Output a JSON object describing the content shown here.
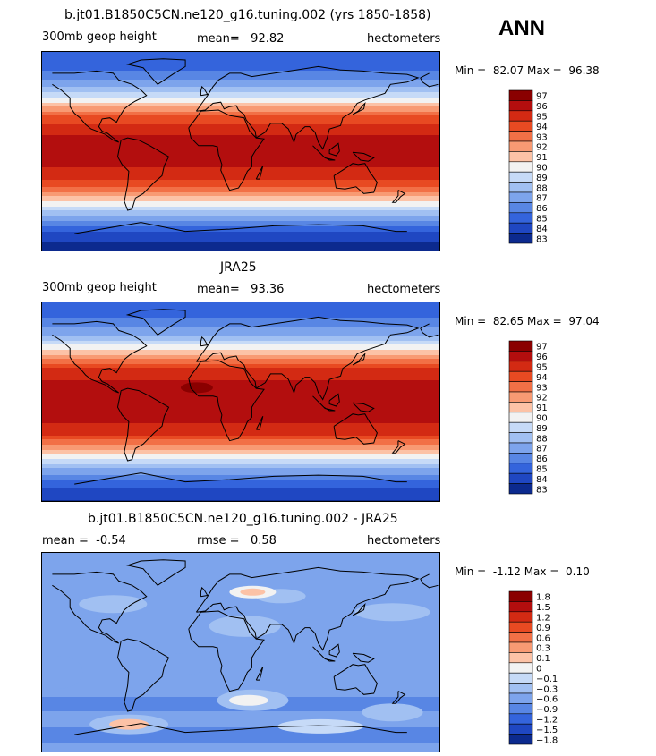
{
  "season": "ANN",
  "units_label": "hectometers",
  "chart_data": [
    {
      "type": "heatmap",
      "title": "b.jt01.B1850C5CN.ne120_g16.tuning.002 (yrs 1850-1858)",
      "field": "300mb geop height",
      "stat_label": "mean=",
      "stat_value": "92.82",
      "units": "hectometers",
      "min_label": "Min =",
      "min_value": "82.07",
      "max_label": "Max =",
      "max_value": "96.38",
      "colorbar_levels": [
        "97",
        "96",
        "95",
        "94",
        "93",
        "92",
        "91",
        "90",
        "89",
        "88",
        "87",
        "86",
        "85",
        "84",
        "83"
      ],
      "colorbar_colors": [
        "#8a0000",
        "#b30e0e",
        "#d32a13",
        "#e84a22",
        "#f27046",
        "#f89a73",
        "#fcc2a6",
        "#f2f2f2",
        "#c6daf7",
        "#a1c0f2",
        "#7da4ec",
        "#5886e4",
        "#3464dc",
        "#1f47c2",
        "#0c2a8e"
      ],
      "lat_profile": [
        [
          -90,
          83.3
        ],
        [
          -75,
          84.6
        ],
        [
          -60,
          87.4
        ],
        [
          -45,
          91.0
        ],
        [
          -30,
          94.6
        ],
        [
          -15,
          96.0
        ],
        [
          0,
          96.2
        ],
        [
          15,
          96.0
        ],
        [
          30,
          94.4
        ],
        [
          45,
          90.8
        ],
        [
          60,
          87.6
        ],
        [
          75,
          85.6
        ],
        [
          90,
          85.0
        ]
      ]
    },
    {
      "type": "heatmap",
      "title": "JRA25",
      "field": "300mb geop height",
      "stat_label": "mean=",
      "stat_value": "93.36",
      "units": "hectometers",
      "min_label": "Min =",
      "min_value": "82.65",
      "max_label": "Max =",
      "max_value": "97.04",
      "colorbar_levels": [
        "97",
        "96",
        "95",
        "94",
        "93",
        "92",
        "91",
        "90",
        "89",
        "88",
        "87",
        "86",
        "85",
        "84",
        "83"
      ],
      "colorbar_colors": [
        "#8a0000",
        "#b30e0e",
        "#d32a13",
        "#e84a22",
        "#f27046",
        "#f89a73",
        "#fcc2a6",
        "#f2f2f2",
        "#c6daf7",
        "#a1c0f2",
        "#7da4ec",
        "#5886e4",
        "#3464dc",
        "#1f47c2",
        "#0c2a8e"
      ],
      "lat_profile": [
        [
          -90,
          83.8
        ],
        [
          -75,
          85.2
        ],
        [
          -60,
          88.0
        ],
        [
          -45,
          91.5
        ],
        [
          -30,
          95.0
        ],
        [
          -15,
          96.5
        ],
        [
          0,
          96.8
        ],
        [
          15,
          96.5
        ],
        [
          30,
          95.0
        ],
        [
          45,
          91.2
        ],
        [
          60,
          88.0
        ],
        [
          75,
          86.0
        ],
        [
          90,
          85.4
        ]
      ]
    },
    {
      "type": "heatmap",
      "title": "b.jt01.B1850C5CN.ne120_g16.tuning.002 - JRA25",
      "field": "",
      "stat_label": "mean =",
      "stat_value": "-0.54",
      "stat2_label": "rmse =",
      "stat2_value": "0.58",
      "units": "hectometers",
      "min_label": "Min =",
      "min_value": "-1.12",
      "max_label": "Max =",
      "max_value": "0.10",
      "colorbar_levels": [
        "1.8",
        "1.5",
        "1.2",
        "0.9",
        "0.6",
        "0.3",
        "0.1",
        "0",
        "−0.1",
        "−0.3",
        "−0.6",
        "−0.9",
        "−1.2",
        "−1.5",
        "−1.8"
      ],
      "colorbar_colors": [
        "#8a0000",
        "#b30e0e",
        "#d32a13",
        "#e84a22",
        "#f27046",
        "#f89a73",
        "#fcc2a6",
        "#f2f2f2",
        "#c6daf7",
        "#a1c0f2",
        "#7da4ec",
        "#5886e4",
        "#3464dc",
        "#1f47c2",
        "#0c2a8e"
      ],
      "lat_profile": [
        [
          -90,
          -0.5
        ],
        [
          -75,
          -0.7
        ],
        [
          -60,
          -0.5
        ],
        [
          -45,
          -0.7
        ],
        [
          -30,
          -0.4
        ],
        [
          -15,
          -0.6
        ],
        [
          0,
          -0.5
        ],
        [
          15,
          -0.6
        ],
        [
          30,
          -0.5
        ],
        [
          45,
          -0.4
        ],
        [
          60,
          -0.3
        ],
        [
          75,
          -0.5
        ],
        [
          90,
          -0.4
        ]
      ]
    }
  ]
}
